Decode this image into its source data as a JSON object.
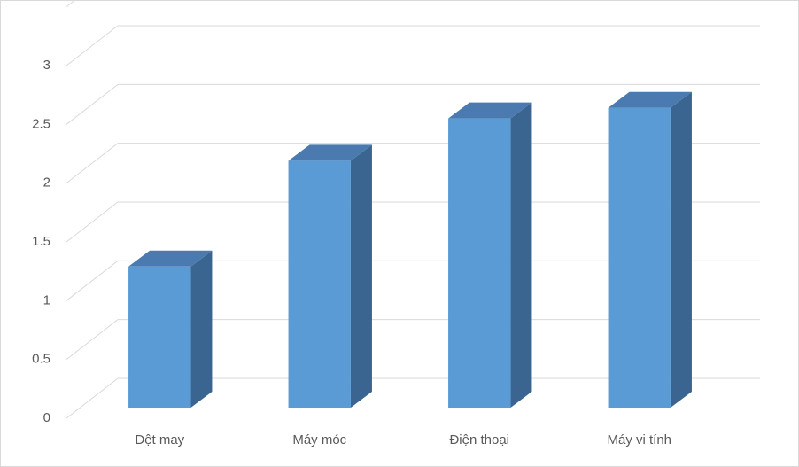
{
  "chart_data": {
    "type": "bar3d",
    "categories": [
      "Dệt may",
      "Máy móc",
      "Điện thoại",
      "Máy vi tính"
    ],
    "values": [
      1.2,
      2.1,
      2.46,
      2.55
    ],
    "color": "#5b9bd5",
    "ylim": [
      0,
      3.5
    ],
    "yticks": [
      0,
      0.5,
      1,
      1.5,
      2,
      2.5,
      3
    ],
    "grid": true
  }
}
